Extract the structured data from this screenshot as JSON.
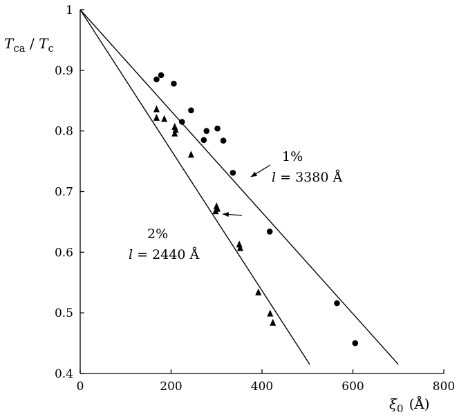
{
  "chart_data": {
    "type": "scatter",
    "xlabel": "ξ0 (Å)",
    "ylabel": "Tca / Tc",
    "xlim": [
      0,
      800
    ],
    "ylim": [
      0.4,
      1.0
    ],
    "x_ticks": [
      "0",
      "200",
      "400",
      "600",
      "800"
    ],
    "y_ticks": [
      "0.4",
      "0.5",
      "0.6",
      "0.7",
      "0.8",
      "0.9",
      "1"
    ],
    "grid": false,
    "series": [
      {
        "marker": "circle",
        "points": [
          [
            168,
            0.885
          ],
          [
            178,
            0.892
          ],
          [
            206,
            0.878
          ],
          [
            224,
            0.815
          ],
          [
            244,
            0.834
          ],
          [
            272,
            0.785
          ],
          [
            278,
            0.8
          ],
          [
            302,
            0.804
          ],
          [
            315,
            0.784
          ],
          [
            336,
            0.731
          ],
          [
            417,
            0.634
          ],
          [
            565,
            0.516
          ],
          [
            605,
            0.45
          ]
        ]
      },
      {
        "marker": "triangle",
        "points": [
          [
            168,
            0.836
          ],
          [
            168,
            0.822
          ],
          [
            185,
            0.82
          ],
          [
            208,
            0.807
          ],
          [
            210,
            0.802
          ],
          [
            208,
            0.796
          ],
          [
            244,
            0.761
          ],
          [
            300,
            0.676
          ],
          [
            302,
            0.672
          ],
          [
            298,
            0.668
          ],
          [
            350,
            0.613
          ],
          [
            352,
            0.607
          ],
          [
            392,
            0.534
          ],
          [
            418,
            0.499
          ],
          [
            424,
            0.484
          ]
        ]
      }
    ],
    "lines": [
      {
        "x": [
          0,
          700
        ],
        "y": [
          1.0,
          0.415
        ]
      },
      {
        "x": [
          0,
          505
        ],
        "y": [
          1.0,
          0.415
        ]
      }
    ],
    "annotations": [
      {
        "line1": "1%",
        "line2": "l = 3380 Å",
        "arrow_to": [
          375,
          0.724
        ]
      },
      {
        "line1": "2%",
        "line2": "l = 2440 Å",
        "arrow_to": [
          313,
          0.663
        ]
      }
    ]
  },
  "labels": {
    "y_main": "T",
    "y_sub1": "ca",
    "y_sep": " / ",
    "y_sub2": "c",
    "x_main": "ξ",
    "x_sub": "0",
    "x_unit": "(Å)",
    "ann1_pct": "1%",
    "ann1_l": "l",
    "ann1_eq": " = 3380 Å",
    "ann2_pct": "2%",
    "ann2_l": "l",
    "ann2_eq": " = 2440 Å"
  }
}
